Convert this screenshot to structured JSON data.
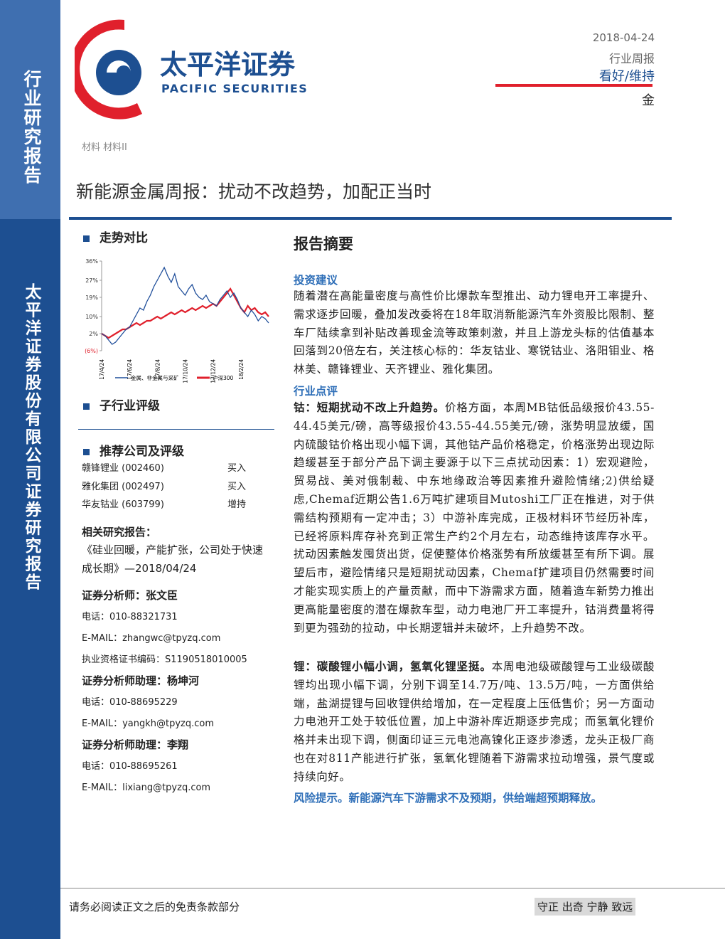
{
  "sidebar": {
    "top_text": "行业研究报告",
    "bottom_text": "太平洋证券股份有限公司证券研究报告"
  },
  "header": {
    "logo_cn": "太平洋证券",
    "logo_en": "PACIFIC SECURITIES",
    "date": "2018-04-24",
    "report_type": "行业周报",
    "rating": "看好/维持",
    "sector": "金"
  },
  "category": "材料 材料II",
  "title": "新能源金属周报：扰动不改趋势，加配正当时",
  "left": {
    "trend_heading": "走势对比",
    "subsector_heading": "子行业评级",
    "recommend_heading": "推荐公司及评级",
    "companies": [
      [
        "赣锋锂业 (002460)",
        "买入"
      ],
      [
        "雅化集团 (002497)",
        "买入"
      ],
      [
        "华友钴业 (603799)",
        "增持"
      ]
    ],
    "related_heading": "相关研究报告：",
    "related_report": "《硅业回暖，产能扩张，公司处于快速成长期》—2018/04/24",
    "analysts": [
      {
        "role": "证券分析师：张文臣",
        "lines": [
          "电话：010-88321731",
          "E-MAIL：zhangwc@tpyzq.com",
          "执业资格证书编码：S1190518010005"
        ]
      },
      {
        "role": "证券分析师助理：杨坤河",
        "lines": [
          "电话：010-88695229",
          "E-MAIL：yangkh@tpyzq.com"
        ]
      },
      {
        "role": "证券分析师助理：李翔",
        "lines": [
          "电话：010-88695261",
          "E-MAIL：lixiang@tpyzq.com"
        ]
      }
    ]
  },
  "chart_data": {
    "type": "line",
    "categories": [
      "17/4/24",
      null,
      null,
      null,
      null,
      null,
      null,
      null,
      "17/6/24",
      null,
      null,
      null,
      null,
      null,
      null,
      null,
      "17/8/24",
      null,
      null,
      null,
      null,
      null,
      null,
      null,
      "17/10/24",
      null,
      null,
      null,
      null,
      null,
      null,
      null,
      "17/12/24",
      null,
      null,
      null,
      null,
      null,
      null,
      null,
      "18/2/24",
      null,
      null,
      null,
      null,
      null,
      null,
      null,
      null
    ],
    "ylim": [
      -6,
      36
    ],
    "yticks": [
      {
        "value": 36,
        "label": "36%"
      },
      {
        "value": 27,
        "label": "27%"
      },
      {
        "value": 19,
        "label": "19%"
      },
      {
        "value": 10,
        "label": "10%"
      },
      {
        "value": 2,
        "label": "2%"
      },
      {
        "value": -6,
        "label": "(6%)"
      }
    ],
    "grid": false,
    "series": [
      {
        "name": "金属、非金属与采矿",
        "color": "#1f4e9a",
        "values": [
          2,
          1,
          -1,
          -3,
          -2,
          0,
          2,
          4,
          5,
          8,
          11,
          14,
          13,
          17,
          20,
          24,
          27,
          30,
          33,
          29,
          26,
          30,
          24,
          22,
          20,
          23,
          25,
          21,
          19,
          18,
          20,
          17,
          16,
          15,
          18,
          20,
          22,
          19,
          21,
          18,
          14,
          12,
          10,
          13,
          11,
          8,
          10,
          9,
          7
        ]
      },
      {
        "name": "沪深300",
        "color": "#e0202c",
        "values": [
          2,
          1,
          0,
          1,
          2,
          3,
          4,
          4,
          5,
          6,
          7,
          6,
          7,
          8,
          8,
          9,
          10,
          9,
          10,
          11,
          12,
          11,
          12,
          13,
          12,
          13,
          14,
          13,
          14,
          15,
          14,
          15,
          16,
          15,
          17,
          19,
          21,
          23,
          20,
          17,
          14,
          12,
          15,
          13,
          14,
          12,
          11,
          12,
          10
        ]
      }
    ]
  },
  "right": {
    "summary_heading": "报告摘要",
    "invest_heading": "投资建议",
    "invest_text": "随着潜在高能量密度与高性价比爆款车型推出、动力锂电开工率提升、需求逐步回暖，叠加发改委将在18年取消新能源汽车外资股比限制、整车厂陆续拿到补贴改善现金流等政策刺激，并且上游龙头标的估值基本回落到20倍左右，关注核心标的：华友钴业、寒锐钴业、洛阳钼业、格林美、赣锋锂业、天齐锂业、雅化集团。",
    "review_heading": "行业点评",
    "cobalt_lead": "钴：短期扰动不改上升趋势。",
    "cobalt_text": "价格方面，本周MB钴低品级报价43.55-44.45美元/磅，高等级报价43.55-44.55美元/磅，涨势明显放缓，国内硫酸钴价格出现小幅下调，其他钴产品价格稳定，价格涨势出现边际趋缓甚至于部分产品下调主要源于以下三点扰动因素：1）宏观避险，贸易战、美对俄制裁、中东地缘政治等因素推升避险情绪;2)供给疑虑,Chemaf近期公告1.6万吨扩建项目Mutoshi工厂正在推进，对于供需结构预期有一定冲击；3）中游补库完成，正极材料环节经历补库，已经将原料库存补充到正常生产约2个月左右，动态维持该库存水平。扰动因素触发囤货出货，促使整体价格涨势有所放缓甚至有所下调。展望后市，避险情绪只是短期扰动因素，Chemaf扩建项目仍然需要时间才能实现实质上的产量贡献，而中下游需求方面，随着造车新势力推出更高能量密度的潜在爆款车型，动力电池厂开工率提升，钴消费量将得到更为强劲的拉动，中长期逻辑并未破坏，上升趋势不改。",
    "lithium_lead": "锂：碳酸锂小幅小调，氢氧化锂坚挺。",
    "lithium_text": "本周电池级碳酸锂与工业级碳酸锂均出现小幅下调，分别下调至14.7万/吨、13.5万/吨，一方面供给端，盐湖提锂与回收锂供给增加，在一定程度上压低售价；另一方面动力电池开工处于较低位置，加上中游补库近期逐步完成；而氢氧化锂价格并未出现下调，侧面印证三元电池高镍化正逐步渗透，龙头正极厂商也在对811产能进行扩张，氢氧化锂随着下游需求拉动增强，景气度或持续向好。",
    "risk": "风险提示。新能源汽车下游需求不及预期，供给端超预期释放。"
  },
  "footer": {
    "disclaimer": "请务必阅读正文之后的免责条款部分",
    "motto": "守正 出奇 宁静 致远"
  }
}
